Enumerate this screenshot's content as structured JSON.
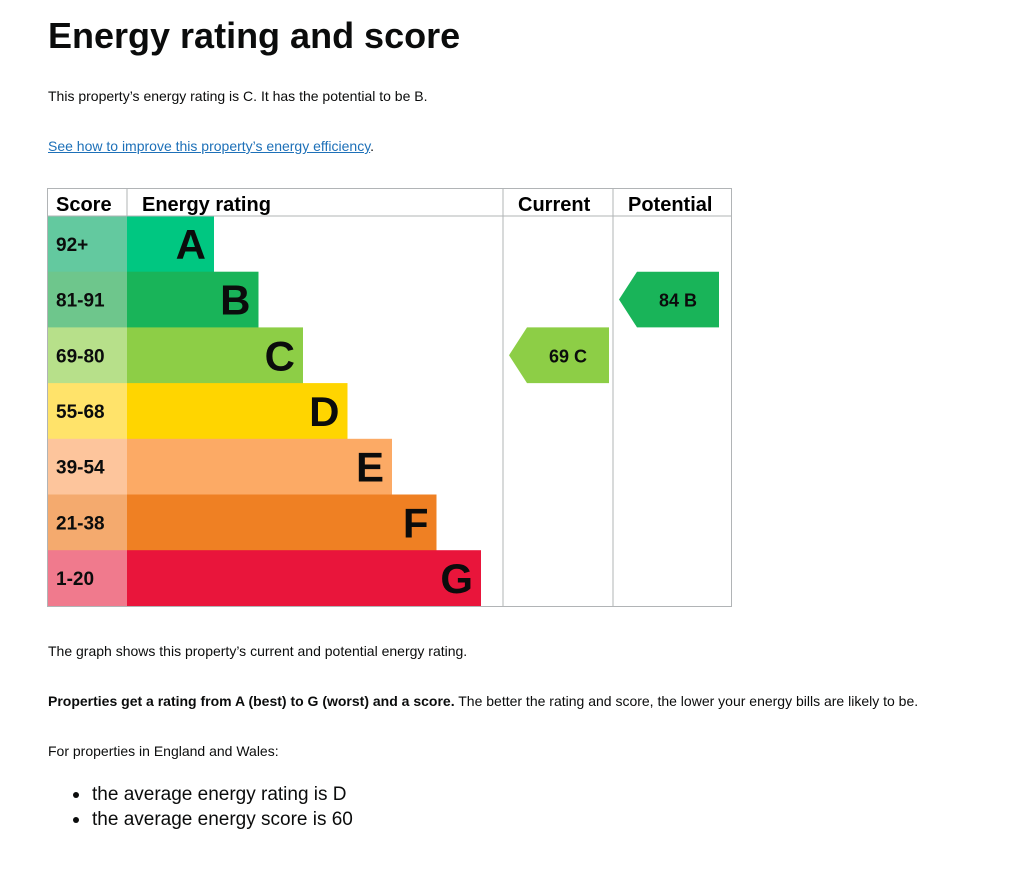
{
  "heading": "Energy rating and score",
  "intro": "This property’s energy rating is C. It has the potential to be B.",
  "improve_link": "See how to improve this property’s energy efficiency",
  "improve_link_suffix": ".",
  "graph_note": "The graph shows this property’s current and potential energy rating.",
  "rating_note_bold": "Properties get a rating from A (best) to G (worst) and a score.",
  "rating_note_rest": " The better the rating and score, the lower your energy bills are likely to be.",
  "region_note": "For properties in England and Wales:",
  "averages": [
    "the average energy rating is D",
    "the average energy score is 60"
  ],
  "chart_data": {
    "type": "bar",
    "columns": [
      "Score",
      "Energy rating",
      "Current",
      "Potential"
    ],
    "bands": [
      {
        "letter": "A",
        "score": "92+",
        "color": "#00c781",
        "score_color": "#63c99f"
      },
      {
        "letter": "B",
        "score": "81-91",
        "color": "#19b459",
        "score_color": "#6ec68c"
      },
      {
        "letter": "C",
        "score": "69-80",
        "color": "#8dce46",
        "score_color": "#b7e08a"
      },
      {
        "letter": "D",
        "score": "55-68",
        "color": "#ffd500",
        "score_color": "#ffe36a"
      },
      {
        "letter": "E",
        "score": "39-54",
        "color": "#fcaa65",
        "score_color": "#fdc59c"
      },
      {
        "letter": "F",
        "score": "21-38",
        "color": "#ef8023",
        "score_color": "#f4aa6e"
      },
      {
        "letter": "G",
        "score": "1-20",
        "color": "#e9153b",
        "score_color": "#f07a8d"
      }
    ],
    "current": {
      "score": 69,
      "letter": "C",
      "color": "#8dce46"
    },
    "potential": {
      "score": 84,
      "letter": "B",
      "color": "#19b459"
    }
  }
}
